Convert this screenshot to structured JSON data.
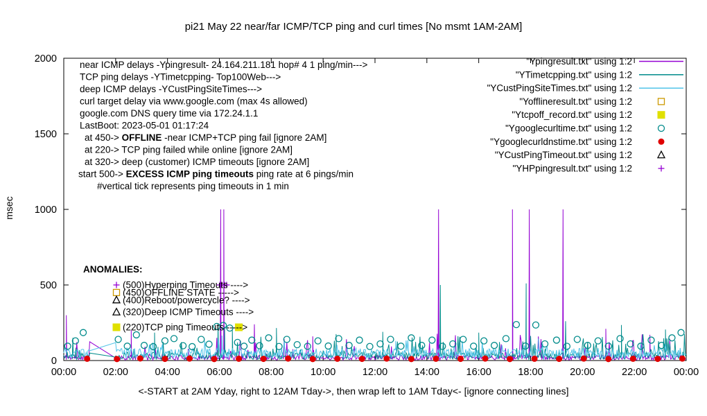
{
  "chart_data": {
    "type": "line",
    "title": "pi21 May 22  near/far ICMP/TCP ping and curl times [No msmt 1AM-2AM]",
    "xlabel": "<-START at 2AM Yday, right to 12AM Tday->, then wrap left to 1AM Tday<- [ignore connecting lines]",
    "ylabel": "msec",
    "ylim": [
      0,
      2000
    ],
    "y_ticks": [
      0,
      500,
      1000,
      1500,
      2000
    ],
    "x_range_hours": [
      0,
      24
    ],
    "x_ticks": [
      {
        "h": 0,
        "label": "00:00"
      },
      {
        "h": 2,
        "label": "02:00"
      },
      {
        "h": 4,
        "label": "04:00"
      },
      {
        "h": 6,
        "label": "06:00"
      },
      {
        "h": 8,
        "label": "08:00"
      },
      {
        "h": 10,
        "label": "10:00"
      },
      {
        "h": 12,
        "label": "12:00"
      },
      {
        "h": 14,
        "label": "14:00"
      },
      {
        "h": 16,
        "label": "16:00"
      },
      {
        "h": 18,
        "label": "18:00"
      },
      {
        "h": 20,
        "label": "20:00"
      },
      {
        "h": 22,
        "label": "22:00"
      },
      {
        "h": 24,
        "label": "00:00"
      }
    ],
    "grid": false,
    "legend_position": "top-right",
    "no_measurement_window_hours": [
      1,
      2
    ],
    "info_lines": [
      {
        "text": "near ICMP delays -Ypingresult- 24.164.211.181 hop# 4 1 ping/min--->",
        "indent": 0
      },
      {
        "text": "TCP ping delays -YTimetcpping- Top100Web--->",
        "indent": 0
      },
      {
        "text": "deep ICMP delays -YCustPingSiteTimes--->",
        "indent": 0
      },
      {
        "text": "curl target delay via www.google.com (max 4s allowed)",
        "indent": 0
      },
      {
        "text": "google.com DNS query time via 172.24.1.1",
        "indent": 0
      },
      {
        "text": "LastBoot: 2023-05-01 01:17:24",
        "indent": 0
      },
      {
        "pre": "at 450->  ",
        "bold": "OFFLINE",
        "post": " -near ICMP+TCP ping fail [ignore 2AM]",
        "indent": 7
      },
      {
        "text": "at 220-> TCP ping failed while online [ignore 2AM]",
        "indent": 7
      },
      {
        "text": "at 320-> deep (customer) ICMP timeouts [ignore 2AM]",
        "indent": 7
      },
      {
        "pre": "start 500->  ",
        "bold": "EXCESS ICMP ping timeouts",
        "post": "  ping rate at 6 pings/min",
        "indent": -2
      },
      {
        "text": "#vertical tick represents ping timeouts in 1 min",
        "indent": 25
      }
    ],
    "anomalies_header": "ANOMALIES:",
    "anomalies": [
      {
        "value": 500,
        "marker": "plus",
        "color": "#9400d3",
        "label": "(500)Hyperping Timeouts ---->"
      },
      {
        "value": 450,
        "marker": "square-open",
        "color": "#cc9900",
        "label": "(450)OFFLINE STATE ----->"
      },
      {
        "value": 400,
        "marker": "triangle-open",
        "color": "#000000",
        "label": "(400)Reboot/powercycle? ---->"
      },
      {
        "value": 320,
        "marker": "triangle-open",
        "color": "#000000",
        "label": "(320)Deep ICMP Timeouts ---->"
      },
      {
        "value": 220,
        "marker": "square-filled",
        "color": "#e0e000",
        "label": "(220)TCP ping Timeouts ----->"
      }
    ],
    "series": [
      {
        "key": "\"Ypingresult.txt\" using 1:2",
        "kind": "noisy-line",
        "color": "#9400d3",
        "baseline": [
          3,
          35
        ],
        "noise_spike_chance": 0.07,
        "noise_spike_max": 150,
        "seed": 11,
        "major_spikes": [
          [
            0.1,
            300
          ],
          [
            2.6,
            200
          ],
          [
            6.05,
            1000
          ],
          [
            6.17,
            1000
          ],
          [
            7.35,
            240
          ],
          [
            9.6,
            160
          ],
          [
            14.45,
            1000
          ],
          [
            17.3,
            1000
          ],
          [
            17.95,
            1000
          ],
          [
            19.25,
            1000
          ],
          [
            20.9,
            210
          ],
          [
            22.6,
            170
          ]
        ]
      },
      {
        "key": "\"YTimetcpping.txt\" using 1:2",
        "kind": "noisy-line",
        "color": "#008b8b",
        "baseline": [
          6,
          55
        ],
        "noise_spike_chance": 0.12,
        "noise_spike_max": 130,
        "seed": 22,
        "major_spikes": [
          [
            0.35,
            150
          ],
          [
            3.5,
            185
          ],
          [
            5.95,
            235
          ],
          [
            6.2,
            225
          ],
          [
            6.5,
            205
          ],
          [
            8.2,
            215
          ],
          [
            10.5,
            175
          ],
          [
            12.3,
            190
          ],
          [
            14.52,
            500
          ],
          [
            16.0,
            185
          ],
          [
            17.83,
            510
          ],
          [
            19.35,
            260
          ],
          [
            21.5,
            235
          ],
          [
            23.2,
            205
          ]
        ]
      },
      {
        "key": "\"YCustPingSiteTimes.txt\" using 1:2",
        "kind": "noisy-line",
        "color": "#4fc3e8",
        "baseline": [
          12,
          80
        ],
        "noise_spike_chance": 0.06,
        "noise_spike_max": 70,
        "seed": 33,
        "major_spikes": [
          [
            6.1,
            165
          ],
          [
            12.8,
            130
          ],
          [
            18.3,
            145
          ]
        ]
      },
      {
        "key": "\"Yofflineresult.txt\" using 1:2",
        "kind": "scatter",
        "marker": "square-open",
        "color": "#cc9900",
        "points": []
      },
      {
        "key": "\"Ytcpoff_record.txt\" using 1:2",
        "kind": "scatter",
        "marker": "square-filled",
        "color": "#e0e000",
        "points": [
          [
            6.75,
            220
          ]
        ]
      },
      {
        "key": "\"Ygooglecurltime.txt\" using 1:2",
        "kind": "scatter",
        "marker": "circle-open",
        "color": "#008b8b",
        "points": [
          [
            0.15,
            95
          ],
          [
            0.45,
            130
          ],
          [
            0.75,
            185
          ],
          [
            2.1,
            140
          ],
          [
            2.45,
            95
          ],
          [
            2.8,
            170
          ],
          [
            3.1,
            100
          ],
          [
            3.45,
            92
          ],
          [
            3.9,
            130
          ],
          [
            4.25,
            145
          ],
          [
            4.6,
            98
          ],
          [
            4.95,
            92
          ],
          [
            5.3,
            140
          ],
          [
            5.6,
            108
          ],
          [
            5.9,
            225
          ],
          [
            6.15,
            232
          ],
          [
            6.4,
            215
          ],
          [
            6.7,
            120
          ],
          [
            6.95,
            95
          ],
          [
            7.25,
            135
          ],
          [
            7.55,
            98
          ],
          [
            7.9,
            150
          ],
          [
            8.3,
            93
          ],
          [
            8.6,
            140
          ],
          [
            9.0,
            105
          ],
          [
            9.4,
            94
          ],
          [
            9.8,
            130
          ],
          [
            10.2,
            96
          ],
          [
            10.6,
            145
          ],
          [
            11.0,
            100
          ],
          [
            11.4,
            135
          ],
          [
            11.8,
            93
          ],
          [
            12.2,
            110
          ],
          [
            12.6,
            140
          ],
          [
            13.0,
            95
          ],
          [
            13.4,
            150
          ],
          [
            13.8,
            100
          ],
          [
            14.2,
            135
          ],
          [
            14.6,
            94
          ],
          [
            15.0,
            110
          ],
          [
            15.4,
            140
          ],
          [
            15.8,
            95
          ],
          [
            16.2,
            130
          ],
          [
            16.6,
            100
          ],
          [
            17.05,
            145
          ],
          [
            17.45,
            238
          ],
          [
            17.8,
            96
          ],
          [
            18.2,
            235
          ],
          [
            18.55,
            110
          ],
          [
            19.0,
            135
          ],
          [
            19.4,
            94
          ],
          [
            19.8,
            140
          ],
          [
            20.2,
            100
          ],
          [
            20.6,
            130
          ],
          [
            21.0,
            95
          ],
          [
            21.45,
            145
          ],
          [
            21.85,
            110
          ],
          [
            22.25,
            95
          ],
          [
            22.65,
            135
          ],
          [
            23.05,
            100
          ],
          [
            23.45,
            150
          ],
          [
            23.8,
            185
          ]
        ]
      },
      {
        "key": "\"Ygooglecurldnstime.txt\" using 1:2",
        "kind": "scatter",
        "marker": "circle-filled",
        "color": "#e00000",
        "points": [
          [
            0.9,
            12
          ],
          [
            2.05,
            10
          ],
          [
            2.95,
            14
          ],
          [
            3.9,
            11
          ],
          [
            4.85,
            13
          ],
          [
            5.8,
            10
          ],
          [
            6.75,
            12
          ],
          [
            7.7,
            11
          ],
          [
            8.65,
            13
          ],
          [
            9.6,
            10
          ],
          [
            10.55,
            12
          ],
          [
            11.5,
            11
          ],
          [
            12.45,
            13
          ],
          [
            13.4,
            10
          ],
          [
            14.35,
            12
          ],
          [
            15.3,
            11
          ],
          [
            16.25,
            13
          ],
          [
            17.2,
            10
          ],
          [
            18.15,
            12
          ],
          [
            19.1,
            11
          ],
          [
            20.05,
            13
          ],
          [
            21.0,
            10
          ],
          [
            21.95,
            12
          ],
          [
            22.9,
            11
          ],
          [
            23.85,
            13
          ]
        ]
      },
      {
        "key": "\"YCustPingTimeout.txt\" using 1:2",
        "kind": "scatter",
        "marker": "triangle-open",
        "color": "#000000",
        "points": []
      },
      {
        "key": "\"YHPpingresult.txt\" using 1:2",
        "kind": "scatter",
        "marker": "plus",
        "color": "#9400d3",
        "points": [
          [
            6.02,
            500
          ],
          [
            6.1,
            500
          ],
          [
            6.2,
            500
          ],
          [
            6.28,
            500
          ]
        ]
      }
    ]
  }
}
